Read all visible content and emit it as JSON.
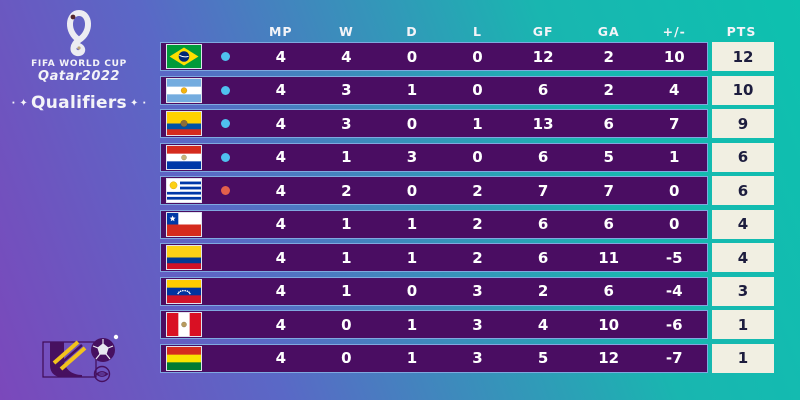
{
  "branding": {
    "logo_title": "FIFA WORLD CUP",
    "logo_year": "Qatar2022",
    "subtitle": "Qualifiers",
    "decor_left": "· ✦",
    "decor_right": "✦ ·"
  },
  "chart_data": {
    "type": "table",
    "title": "FIFA World Cup Qatar2022 Qualifiers",
    "columns": [
      "MP",
      "W",
      "D",
      "L",
      "GF",
      "GA",
      "+/-",
      "PTS"
    ],
    "rows": [
      {
        "team": "Brazil",
        "values": [
          4,
          4,
          0,
          0,
          12,
          2,
          10,
          12
        ]
      },
      {
        "team": "Argentina",
        "values": [
          4,
          3,
          1,
          0,
          6,
          2,
          4,
          10
        ]
      },
      {
        "team": "Ecuador",
        "values": [
          4,
          3,
          0,
          1,
          13,
          6,
          7,
          9
        ]
      },
      {
        "team": "Paraguay",
        "values": [
          4,
          1,
          3,
          0,
          6,
          5,
          1,
          6
        ]
      },
      {
        "team": "Uruguay",
        "values": [
          4,
          2,
          0,
          2,
          7,
          7,
          0,
          6
        ]
      },
      {
        "team": "Chile",
        "values": [
          4,
          1,
          1,
          2,
          6,
          6,
          0,
          4
        ]
      },
      {
        "team": "Colombia",
        "values": [
          4,
          1,
          1,
          2,
          6,
          11,
          -5,
          4
        ]
      },
      {
        "team": "Venezuela",
        "values": [
          4,
          1,
          0,
          3,
          2,
          6,
          -4,
          3
        ]
      },
      {
        "team": "Peru",
        "values": [
          4,
          0,
          1,
          3,
          4,
          10,
          -6,
          1
        ]
      },
      {
        "team": "Bolivia",
        "values": [
          4,
          0,
          1,
          3,
          5,
          12,
          -7,
          1
        ]
      }
    ]
  },
  "table": {
    "header": [
      "MP",
      "W",
      "D",
      "L",
      "GF",
      "GA",
      "+/-",
      "PTS"
    ],
    "teams": [
      {
        "country": "Brazil",
        "dot": "#4fc0ee",
        "stats": [
          "4",
          "4",
          "0",
          "0",
          "12",
          "2",
          "10"
        ],
        "pts": "12",
        "flag": {
          "kind": "brazil"
        }
      },
      {
        "country": "Argentina",
        "dot": "#4fc0ee",
        "stats": [
          "4",
          "3",
          "1",
          "0",
          "6",
          "2",
          "4"
        ],
        "pts": "10",
        "flag": {
          "kind": "h",
          "stripes": [
            [
              "#74acdf",
              1
            ],
            [
              "#ffffff",
              1
            ],
            [
              "#74acdf",
              1
            ]
          ],
          "emblem": {
            "color": "#f6b40e",
            "r": 3
          }
        }
      },
      {
        "country": "Ecuador",
        "dot": "#4fc0ee",
        "stats": [
          "4",
          "3",
          "0",
          "1",
          "13",
          "6",
          "7"
        ],
        "pts": "9",
        "flag": {
          "kind": "h",
          "stripes": [
            [
              "#ffd100",
              2
            ],
            [
              "#0052a5",
              1
            ],
            [
              "#d52b1e",
              1
            ]
          ],
          "emblem": {
            "color": "#8a6d3b",
            "r": 3.4
          }
        }
      },
      {
        "country": "Paraguay",
        "dot": "#4fc0ee",
        "stats": [
          "4",
          "1",
          "3",
          "0",
          "6",
          "5",
          "1"
        ],
        "pts": "6",
        "flag": {
          "kind": "h",
          "stripes": [
            [
              "#d52b1e",
              1
            ],
            [
              "#ffffff",
              1
            ],
            [
              "#0038a8",
              1
            ]
          ],
          "emblem": {
            "color": "#c9b47a",
            "r": 2.6
          }
        }
      },
      {
        "country": "Uruguay",
        "dot": "#e2604b",
        "stats": [
          "4",
          "2",
          "0",
          "2",
          "7",
          "7",
          "0"
        ],
        "pts": "6",
        "flag": {
          "kind": "uruguay"
        }
      },
      {
        "country": "Chile",
        "dot": null,
        "stats": [
          "4",
          "1",
          "1",
          "2",
          "6",
          "6",
          "0"
        ],
        "pts": "4",
        "flag": {
          "kind": "chile"
        }
      },
      {
        "country": "Colombia",
        "dot": null,
        "stats": [
          "4",
          "1",
          "1",
          "2",
          "6",
          "11",
          "-5"
        ],
        "pts": "4",
        "flag": {
          "kind": "h",
          "stripes": [
            [
              "#fcd116",
              2
            ],
            [
              "#003893",
              1
            ],
            [
              "#ce1126",
              1
            ]
          ]
        }
      },
      {
        "country": "Venezuela",
        "dot": null,
        "stats": [
          "4",
          "1",
          "0",
          "3",
          "2",
          "6",
          "-4"
        ],
        "pts": "3",
        "flag": {
          "kind": "h",
          "stripes": [
            [
              "#ffcc00",
              1
            ],
            [
              "#0033a0",
              1
            ],
            [
              "#cf142b",
              1
            ]
          ],
          "stars": true
        }
      },
      {
        "country": "Peru",
        "dot": null,
        "stats": [
          "4",
          "0",
          "1",
          "3",
          "4",
          "10",
          "-6"
        ],
        "pts": "1",
        "flag": {
          "kind": "v",
          "stripes": [
            [
              "#d91023",
              1
            ],
            [
              "#ffffff",
              1
            ],
            [
              "#d91023",
              1
            ]
          ],
          "emblem": {
            "color": "#b89b5e",
            "r": 2.6
          }
        }
      },
      {
        "country": "Bolivia",
        "dot": null,
        "stats": [
          "4",
          "0",
          "1",
          "3",
          "5",
          "12",
          "-7"
        ],
        "pts": "1",
        "flag": {
          "kind": "h",
          "stripes": [
            [
              "#d52b1e",
              1
            ],
            [
              "#f9e300",
              1
            ],
            [
              "#007a33",
              1
            ]
          ]
        }
      }
    ]
  },
  "colors": {
    "background_left": "#7b48bb",
    "background_mid": "#5a68c6",
    "background_right": "#0dc1af",
    "row_background": "#4a0d62",
    "row_border": "#7fa9e0",
    "pts_cell_background": "#f1efe2",
    "pts_text": "#1d1d3e",
    "header_text": "#f4f4f8",
    "dot_direct": "#4fc0ee",
    "dot_playoff": "#e2604b"
  }
}
